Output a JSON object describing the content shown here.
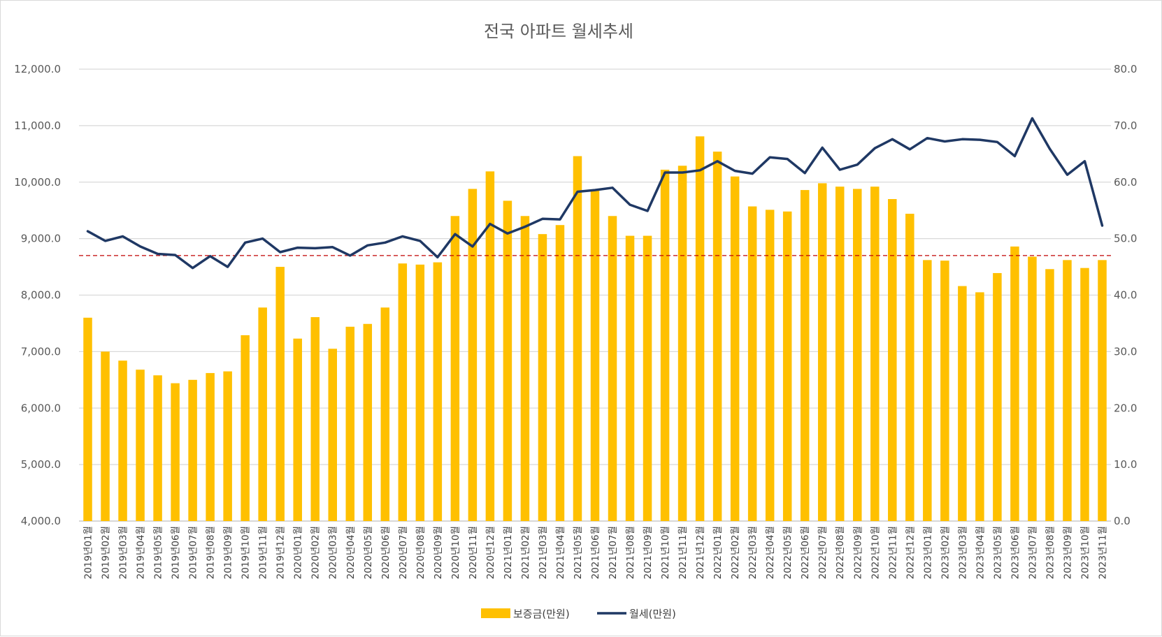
{
  "chart_data": {
    "type": "bar",
    "title": "전국 아파트 월세추세",
    "categories": [
      "2019년01월",
      "2019년02월",
      "2019년03월",
      "2019년04월",
      "2019년05월",
      "2019년06월",
      "2019년07월",
      "2019년08월",
      "2019년09월",
      "2019년10월",
      "2019년11월",
      "2019년12월",
      "2020년01월",
      "2020년02월",
      "2020년03월",
      "2020년04월",
      "2020년05월",
      "2020년06월",
      "2020년07월",
      "2020년08월",
      "2020년09월",
      "2020년10월",
      "2020년11월",
      "2020년12월",
      "2021년01월",
      "2021년02월",
      "2021년03월",
      "2021년04월",
      "2021년05월",
      "2021년06월",
      "2021년07월",
      "2021년08월",
      "2021년09월",
      "2021년10월",
      "2021년11월",
      "2021년12월",
      "2022년01월",
      "2022년02월",
      "2022년03월",
      "2022년04월",
      "2022년05월",
      "2022년06월",
      "2022년07월",
      "2022년08월",
      "2022년09월",
      "2022년10월",
      "2022년11월",
      "2022년12월",
      "2023년01월",
      "2023년02월",
      "2023년03월",
      "2023년04월",
      "2023년05월",
      "2023년06월",
      "2023년07월",
      "2023년08월",
      "2023년09월",
      "2023년10월",
      "2023년11월"
    ],
    "series": [
      {
        "name": "보증금(만원)",
        "type": "bar",
        "axis": "left",
        "color": "#FFC000",
        "values": [
          7600,
          7000,
          6840,
          6680,
          6580,
          6440,
          6500,
          6620,
          6650,
          7290,
          7780,
          8500,
          7230,
          7610,
          7050,
          7440,
          7490,
          7780,
          8560,
          8540,
          8580,
          9400,
          9880,
          10190,
          9670,
          9400,
          9080,
          9240,
          10460,
          9850,
          9400,
          9050,
          9050,
          10220,
          10290,
          10810,
          10540,
          10100,
          9570,
          9510,
          9480,
          9860,
          9980,
          9920,
          9880,
          9920,
          9700,
          9440,
          8620,
          8610,
          8160,
          8050,
          8390,
          8860,
          8680,
          8460,
          8620,
          8480,
          8620
        ]
      },
      {
        "name": "월세(만원)",
        "type": "line",
        "axis": "right",
        "color": "#1F3864",
        "values": [
          51.3,
          49.6,
          50.4,
          48.6,
          47.3,
          47.1,
          44.8,
          46.9,
          45.0,
          49.3,
          50.0,
          47.6,
          48.4,
          48.3,
          48.5,
          47.0,
          48.8,
          49.3,
          50.4,
          49.6,
          46.7,
          50.8,
          48.6,
          52.6,
          50.9,
          52.1,
          53.5,
          53.4,
          58.3,
          58.6,
          59.0,
          56.0,
          54.9,
          61.7,
          61.7,
          62.1,
          63.7,
          62.0,
          61.5,
          64.4,
          64.1,
          61.6,
          66.1,
          62.2,
          63.1,
          66.0,
          67.6,
          65.8,
          67.8,
          67.2,
          67.6,
          67.5,
          67.1,
          64.6,
          71.3,
          65.9,
          61.3,
          63.7,
          52.3
        ]
      }
    ],
    "ylim_left": [
      4000,
      12000
    ],
    "ylim_right": [
      0,
      80
    ],
    "yticks_left": [
      "4,000.0",
      "5,000.0",
      "6,000.0",
      "7,000.0",
      "8,000.0",
      "9,000.0",
      "10,000.0",
      "11,000.0",
      "12,000.0"
    ],
    "yticks_right": [
      "0.0",
      "10.0",
      "20.0",
      "30.0",
      "40.0",
      "50.0",
      "60.0",
      "70.0",
      "80.0"
    ],
    "reference_line": {
      "value_left": 8700,
      "color": "#C00000",
      "style": "dashed"
    },
    "grid": true,
    "legend_position": "bottom-center",
    "xlabel": "",
    "ylabel": ""
  }
}
